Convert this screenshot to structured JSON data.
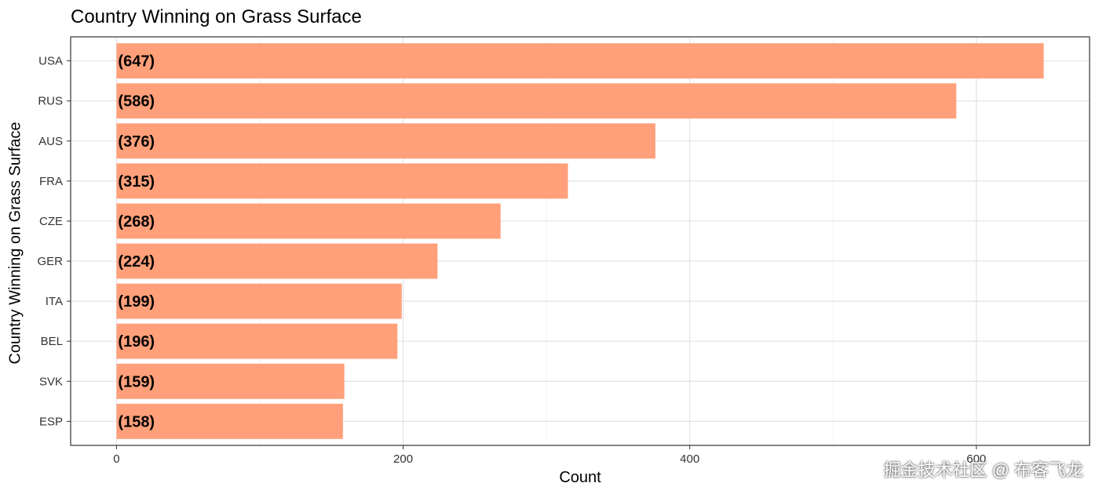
{
  "chart_data": {
    "type": "bar",
    "orientation": "horizontal",
    "title": "Country Winning on Grass Surface",
    "xlabel": "Count",
    "ylabel": "Country Winning on Grass Surface",
    "categories": [
      "USA",
      "RUS",
      "AUS",
      "FRA",
      "CZE",
      "GER",
      "ITA",
      "BEL",
      "SVK",
      "ESP"
    ],
    "values": [
      647,
      586,
      376,
      315,
      268,
      224,
      199,
      196,
      159,
      158
    ],
    "data_labels": [
      "(647)",
      "(586)",
      "(376)",
      "(315)",
      "(268)",
      "(224)",
      "(199)",
      "(196)",
      "(159)",
      "(158)"
    ],
    "xlim": [
      -32,
      679
    ],
    "x_ticks": [
      0,
      200,
      400,
      600
    ],
    "x_tick_labels": [
      "0",
      "200",
      "400",
      "600"
    ],
    "grid": true,
    "bar_color": "#FFA07A"
  },
  "watermark": "掘金技术社区 @ 布客飞龙"
}
